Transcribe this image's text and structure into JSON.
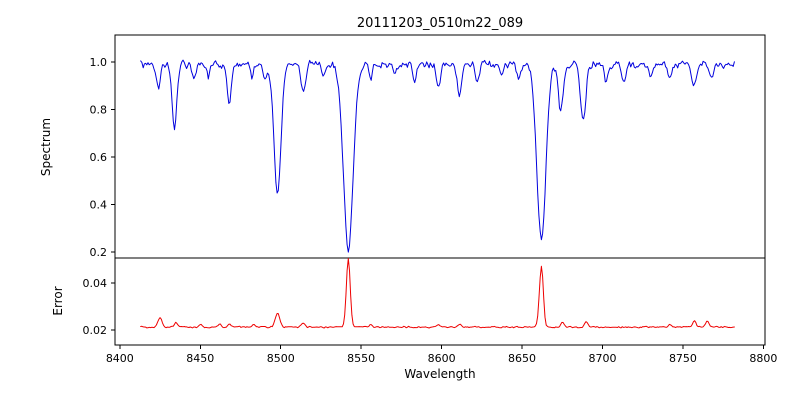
{
  "title": "20111203_0510m22_089",
  "xaxis": {
    "label": "Wavelength",
    "lim": [
      8397,
      8801
    ],
    "tick_values": [
      8400,
      8450,
      8500,
      8550,
      8600,
      8650,
      8700,
      8750,
      8800
    ],
    "tick_labels": [
      "8400",
      "8450",
      "8500",
      "8550",
      "8600",
      "8650",
      "8700",
      "8750",
      "8800"
    ]
  },
  "chart_data": [
    {
      "type": "line",
      "panel": "spectrum",
      "ylabel": "Spectrum",
      "color": "#0000dd",
      "ylim": [
        0.175,
        1.114
      ],
      "ytick_values": [
        0.2,
        0.4,
        0.6,
        0.8,
        1.0
      ],
      "ytick_labels": [
        "0.2",
        "0.4",
        "0.6",
        "0.8",
        "1.0"
      ],
      "x_start": 8413,
      "x_end": 8782,
      "x_step": 0.75,
      "continuum": 0.99,
      "noise_amplitude": 0.022,
      "noise_seed": 20111203,
      "absorption_lines": [
        {
          "center": 8424,
          "depth": 0.1,
          "sigma": 1.2
        },
        {
          "center": 8434,
          "depth": 0.27,
          "sigma": 1.4
        },
        {
          "center": 8446,
          "depth": 0.07,
          "sigma": 1.1
        },
        {
          "center": 8455,
          "depth": 0.05,
          "sigma": 1.0
        },
        {
          "center": 8468,
          "depth": 0.17,
          "sigma": 1.3
        },
        {
          "center": 8482,
          "depth": 0.05,
          "sigma": 1.0
        },
        {
          "center": 8490,
          "depth": 0.06,
          "sigma": 1.0
        },
        {
          "center": 8498,
          "depth": 0.55,
          "sigma": 2.2
        },
        {
          "center": 8514,
          "depth": 0.12,
          "sigma": 1.3
        },
        {
          "center": 8527,
          "depth": 0.05,
          "sigma": 1.0
        },
        {
          "center": 8542,
          "depth": 0.78,
          "sigma": 3.0
        },
        {
          "center": 8556,
          "depth": 0.06,
          "sigma": 1.0
        },
        {
          "center": 8571,
          "depth": 0.05,
          "sigma": 1.0
        },
        {
          "center": 8583,
          "depth": 0.07,
          "sigma": 1.1
        },
        {
          "center": 8598,
          "depth": 0.1,
          "sigma": 1.2
        },
        {
          "center": 8611,
          "depth": 0.13,
          "sigma": 1.3
        },
        {
          "center": 8622,
          "depth": 0.08,
          "sigma": 1.1
        },
        {
          "center": 8637,
          "depth": 0.05,
          "sigma": 1.0
        },
        {
          "center": 8648,
          "depth": 0.06,
          "sigma": 1.0
        },
        {
          "center": 8662,
          "depth": 0.74,
          "sigma": 2.8
        },
        {
          "center": 8674,
          "depth": 0.2,
          "sigma": 1.4
        },
        {
          "center": 8688,
          "depth": 0.24,
          "sigma": 1.6
        },
        {
          "center": 8702,
          "depth": 0.06,
          "sigma": 1.0
        },
        {
          "center": 8713,
          "depth": 0.08,
          "sigma": 1.1
        },
        {
          "center": 8730,
          "depth": 0.06,
          "sigma": 1.0
        },
        {
          "center": 8742,
          "depth": 0.07,
          "sigma": 1.1
        },
        {
          "center": 8757,
          "depth": 0.1,
          "sigma": 1.2
        },
        {
          "center": 8768,
          "depth": 0.07,
          "sigma": 1.1
        }
      ]
    },
    {
      "type": "line",
      "panel": "error",
      "ylabel": "Error",
      "color": "#ee0000",
      "ylim": [
        0.0136,
        0.0506
      ],
      "ytick_values": [
        0.02,
        0.04
      ],
      "ytick_labels": [
        "0.02",
        "0.04"
      ],
      "x_start": 8413,
      "x_end": 8782,
      "x_step": 0.75,
      "baseline": 0.0212,
      "noise_amplitude": 0.00045,
      "noise_seed": 510089,
      "peaks": [
        {
          "center": 8425,
          "height": 0.004,
          "sigma": 1.2
        },
        {
          "center": 8435,
          "height": 0.002,
          "sigma": 1.1
        },
        {
          "center": 8450,
          "height": 0.0012,
          "sigma": 1.0
        },
        {
          "center": 8462,
          "height": 0.0012,
          "sigma": 1.0
        },
        {
          "center": 8468,
          "height": 0.0013,
          "sigma": 1.0
        },
        {
          "center": 8483,
          "height": 0.001,
          "sigma": 1.0
        },
        {
          "center": 8498,
          "height": 0.006,
          "sigma": 1.4
        },
        {
          "center": 8514,
          "height": 0.0016,
          "sigma": 1.1
        },
        {
          "center": 8542,
          "height": 0.029,
          "sigma": 1.2
        },
        {
          "center": 8556,
          "height": 0.001,
          "sigma": 1.0
        },
        {
          "center": 8598,
          "height": 0.0012,
          "sigma": 1.0
        },
        {
          "center": 8611,
          "height": 0.0012,
          "sigma": 1.0
        },
        {
          "center": 8662,
          "height": 0.026,
          "sigma": 1.2
        },
        {
          "center": 8675,
          "height": 0.0022,
          "sigma": 1.0
        },
        {
          "center": 8690,
          "height": 0.0022,
          "sigma": 1.1
        },
        {
          "center": 8742,
          "height": 0.0012,
          "sigma": 1.0
        },
        {
          "center": 8757,
          "height": 0.003,
          "sigma": 1.0
        },
        {
          "center": 8765,
          "height": 0.0026,
          "sigma": 1.0
        }
      ]
    }
  ]
}
